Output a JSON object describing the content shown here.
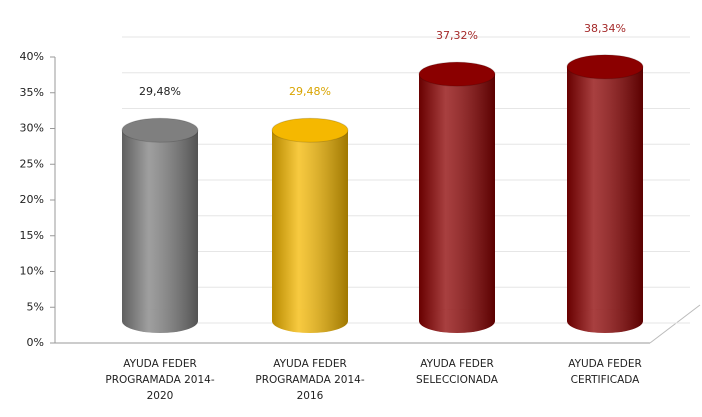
{
  "chart_data": {
    "type": "bar",
    "categories": [
      "AYUDA FEDER PROGRAMADA 2014-2020",
      "AYUDA FEDER PROGRAMADA 2014-2016",
      "AYUDA FEDER SELECCIONADA",
      "AYUDA FEDER CERTIFICADA"
    ],
    "values": [
      29.48,
      29.48,
      37.32,
      38.34
    ],
    "value_labels": [
      "29,48%",
      "29,48%",
      "37,32%",
      "38,34%"
    ],
    "colors": [
      "#7f7f7f",
      "#f5b800",
      "#8b0000",
      "#8b0000"
    ],
    "label_colors": [
      "#222222",
      "#d9a400",
      "#a52a2a",
      "#a52a2a"
    ],
    "ylim": [
      0,
      40
    ],
    "yticks": [
      {
        "value": 0,
        "label": "0%"
      },
      {
        "value": 5,
        "label": "5%"
      },
      {
        "value": 10,
        "label": "10%"
      },
      {
        "value": 15,
        "label": "15%"
      },
      {
        "value": 20,
        "label": "20%"
      },
      {
        "value": 25,
        "label": "25%"
      },
      {
        "value": 30,
        "label": "30%"
      },
      {
        "value": 35,
        "label": "35%"
      },
      {
        "value": 40,
        "label": "40%"
      }
    ],
    "grid": true
  }
}
